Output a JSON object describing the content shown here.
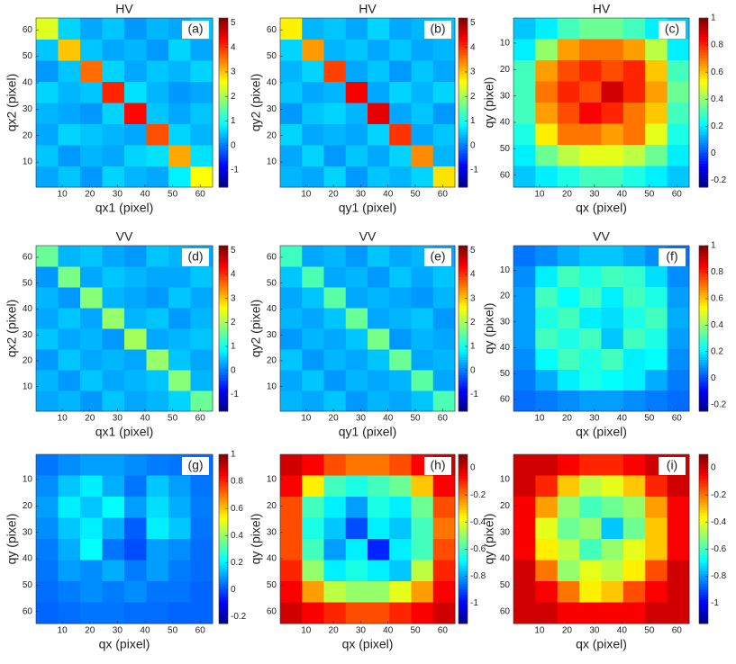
{
  "chart_data": [
    {
      "type": "heatmap",
      "title": "HV",
      "panel_label": "(a)",
      "xlabel": "qx1 (pixel)",
      "ylabel": "qx2 (pixel)",
      "xlim": [
        0.5,
        64.5
      ],
      "ylim": [
        0.5,
        64.5
      ],
      "xticks": [
        10,
        20,
        30,
        40,
        50,
        60
      ],
      "yticks": [
        10,
        20,
        30,
        40,
        50,
        60
      ],
      "y_reversed": false,
      "colormap": "jet",
      "clim": [
        -1.7,
        5.2
      ],
      "cticks": [
        -1,
        0,
        1,
        2,
        3,
        4,
        5
      ],
      "z": [
        [
          0.3,
          0.5,
          0.2,
          0.6,
          0.4,
          0.3,
          0.8,
          2.6
        ],
        [
          0.5,
          0.2,
          0.4,
          0.3,
          0.6,
          0.7,
          3.2,
          0.7
        ],
        [
          0.3,
          0.6,
          0.5,
          0.4,
          0.3,
          3.8,
          0.6,
          0.4
        ],
        [
          0.4,
          0.3,
          0.2,
          0.6,
          4.3,
          0.5,
          0.3,
          0.5
        ],
        [
          0.6,
          0.4,
          0.5,
          4.1,
          0.7,
          0.4,
          0.2,
          0.3
        ],
        [
          0.2,
          0.5,
          3.6,
          0.6,
          0.3,
          0.5,
          0.4,
          0.6
        ],
        [
          0.5,
          3.0,
          0.5,
          0.3,
          0.4,
          0.2,
          0.6,
          0.3
        ],
        [
          2.4,
          0.6,
          0.3,
          0.5,
          0.2,
          0.4,
          0.3,
          0.5
        ]
      ]
    },
    {
      "type": "heatmap",
      "title": "HV",
      "panel_label": "(b)",
      "xlabel": "qy1 (pixel)",
      "ylabel": "qy2 (pixel)",
      "xlim": [
        0.5,
        64.5
      ],
      "ylim": [
        0.5,
        64.5
      ],
      "xticks": [
        10,
        20,
        30,
        40,
        50,
        60
      ],
      "yticks": [
        10,
        20,
        30,
        40,
        50,
        60
      ],
      "y_reversed": false,
      "colormap": "jet",
      "clim": [
        -1.7,
        5.2
      ],
      "cticks": [
        -1,
        0,
        1,
        2,
        3,
        4,
        5
      ],
      "z": [
        [
          0.4,
          0.3,
          0.6,
          0.2,
          0.5,
          0.4,
          0.6,
          2.8
        ],
        [
          0.3,
          0.6,
          0.2,
          0.5,
          0.3,
          0.6,
          3.4,
          0.4
        ],
        [
          0.6,
          0.3,
          0.4,
          0.3,
          0.6,
          4.0,
          0.3,
          0.5
        ],
        [
          0.2,
          0.5,
          0.6,
          0.4,
          4.5,
          0.3,
          0.5,
          0.2
        ],
        [
          0.5,
          0.3,
          0.4,
          4.4,
          0.3,
          0.6,
          0.4,
          0.6
        ],
        [
          0.4,
          0.6,
          3.9,
          0.3,
          0.5,
          0.2,
          0.5,
          0.3
        ],
        [
          0.6,
          3.3,
          0.4,
          0.5,
          0.3,
          0.5,
          0.3,
          0.4
        ],
        [
          2.7,
          0.4,
          0.5,
          0.3,
          0.6,
          0.3,
          0.4,
          0.5
        ]
      ]
    },
    {
      "type": "heatmap",
      "title": "HV",
      "panel_label": "(c)",
      "xlabel": "qx (pixel)",
      "ylabel": "qy (pixel)",
      "xlim": [
        0.5,
        64.5
      ],
      "ylim": [
        0.5,
        64.5
      ],
      "xticks": [
        10,
        20,
        30,
        40,
        50,
        60
      ],
      "yticks": [
        10,
        20,
        30,
        40,
        50,
        60
      ],
      "y_reversed": true,
      "colormap": "jet",
      "clim": [
        -0.25,
        1
      ],
      "cticks": [
        -0.2,
        0,
        0.2,
        0.4,
        0.6,
        0.8,
        1
      ],
      "z": [
        [
          0.15,
          0.2,
          0.3,
          0.35,
          0.35,
          0.3,
          0.2,
          0.15
        ],
        [
          0.2,
          0.4,
          0.65,
          0.7,
          0.7,
          0.65,
          0.45,
          0.2
        ],
        [
          0.3,
          0.65,
          0.75,
          0.8,
          0.75,
          0.8,
          0.6,
          0.3
        ],
        [
          0.3,
          0.7,
          0.8,
          0.75,
          0.9,
          0.8,
          0.65,
          0.35
        ],
        [
          0.3,
          0.65,
          0.75,
          0.85,
          0.8,
          0.7,
          0.6,
          0.3
        ],
        [
          0.25,
          0.55,
          0.7,
          0.7,
          0.65,
          0.7,
          0.5,
          0.25
        ],
        [
          0.2,
          0.35,
          0.45,
          0.5,
          0.5,
          0.45,
          0.35,
          0.2
        ],
        [
          0.15,
          0.2,
          0.25,
          0.3,
          0.3,
          0.25,
          0.2,
          0.15
        ]
      ]
    },
    {
      "type": "heatmap",
      "title": "VV",
      "panel_label": "(d)",
      "xlabel": "qx1 (pixel)",
      "ylabel": "qx2 (pixel)",
      "xlim": [
        0.5,
        64.5
      ],
      "ylim": [
        0.5,
        64.5
      ],
      "xticks": [
        10,
        20,
        30,
        40,
        50,
        60
      ],
      "yticks": [
        10,
        20,
        30,
        40,
        50,
        60
      ],
      "y_reversed": false,
      "colormap": "jet",
      "clim": [
        -1.7,
        5.2
      ],
      "cticks": [
        -1,
        0,
        1,
        2,
        3,
        4,
        5
      ],
      "z": [
        [
          0.3,
          0.4,
          0.2,
          0.5,
          0.3,
          0.4,
          0.6,
          1.6
        ],
        [
          0.4,
          0.2,
          0.5,
          0.3,
          0.4,
          0.5,
          1.8,
          0.4
        ],
        [
          0.2,
          0.5,
          0.3,
          0.4,
          0.3,
          1.9,
          0.5,
          0.3
        ],
        [
          0.5,
          0.3,
          0.4,
          0.2,
          2.0,
          0.3,
          0.4,
          0.5
        ],
        [
          0.3,
          0.5,
          0.3,
          1.9,
          0.4,
          0.5,
          0.2,
          0.4
        ],
        [
          0.4,
          0.2,
          1.8,
          0.4,
          0.3,
          0.2,
          0.5,
          0.3
        ],
        [
          0.2,
          1.7,
          0.3,
          0.5,
          0.4,
          0.3,
          0.3,
          0.5
        ],
        [
          1.6,
          0.4,
          0.5,
          0.3,
          0.2,
          0.5,
          0.4,
          0.3
        ]
      ]
    },
    {
      "type": "heatmap",
      "title": "VV",
      "panel_label": "(e)",
      "xlabel": "qy1 (pixel)",
      "ylabel": "qy2 (pixel)",
      "xlim": [
        0.5,
        64.5
      ],
      "ylim": [
        0.5,
        64.5
      ],
      "xticks": [
        10,
        20,
        30,
        40,
        50,
        60
      ],
      "yticks": [
        10,
        20,
        30,
        40,
        50,
        60
      ],
      "y_reversed": false,
      "colormap": "jet",
      "clim": [
        -1.7,
        5.2
      ],
      "cticks": [
        -1,
        0,
        1,
        2,
        3,
        4,
        5
      ],
      "z": [
        [
          0.4,
          0.3,
          0.5,
          0.2,
          0.4,
          0.3,
          0.5,
          1.4
        ],
        [
          0.3,
          0.5,
          0.2,
          0.4,
          0.3,
          0.4,
          1.5,
          0.3
        ],
        [
          0.5,
          0.2,
          0.4,
          0.3,
          0.5,
          1.6,
          0.3,
          0.4
        ],
        [
          0.2,
          0.4,
          0.3,
          0.5,
          1.7,
          0.2,
          0.4,
          0.3
        ],
        [
          0.4,
          0.3,
          0.5,
          1.6,
          0.3,
          0.4,
          0.5,
          0.2
        ],
        [
          0.3,
          0.5,
          1.5,
          0.3,
          0.4,
          0.3,
          0.2,
          0.4
        ],
        [
          0.5,
          1.4,
          0.3,
          0.4,
          0.2,
          0.5,
          0.3,
          0.5
        ],
        [
          1.3,
          0.3,
          0.4,
          0.2,
          0.5,
          0.3,
          0.4,
          0.3
        ]
      ]
    },
    {
      "type": "heatmap",
      "title": "VV",
      "panel_label": "(f)",
      "xlabel": "qx (pixel)",
      "ylabel": "qy (pixel)",
      "xlim": [
        0.5,
        64.5
      ],
      "ylim": [
        0.5,
        64.5
      ],
      "xticks": [
        10,
        20,
        30,
        40,
        50,
        60
      ],
      "yticks": [
        10,
        20,
        30,
        40,
        50,
        60
      ],
      "y_reversed": true,
      "colormap": "jet",
      "clim": [
        -0.25,
        1
      ],
      "cticks": [
        -0.2,
        0,
        0.2,
        0.4,
        0.6,
        0.8,
        1
      ],
      "z": [
        [
          0.05,
          0.08,
          0.12,
          0.15,
          0.15,
          0.12,
          0.08,
          0.05
        ],
        [
          0.08,
          0.2,
          0.3,
          0.25,
          0.3,
          0.28,
          0.18,
          0.08
        ],
        [
          0.1,
          0.3,
          0.22,
          0.3,
          0.2,
          0.3,
          0.25,
          0.1
        ],
        [
          0.1,
          0.25,
          0.3,
          0.2,
          0.18,
          0.25,
          0.3,
          0.12
        ],
        [
          0.1,
          0.3,
          0.25,
          0.3,
          0.15,
          0.3,
          0.25,
          0.1
        ],
        [
          0.08,
          0.22,
          0.3,
          0.25,
          0.3,
          0.2,
          0.22,
          0.08
        ],
        [
          0.06,
          0.12,
          0.2,
          0.25,
          0.22,
          0.2,
          0.12,
          0.06
        ],
        [
          0.04,
          0.06,
          0.08,
          0.1,
          0.1,
          0.08,
          0.06,
          0.04
        ]
      ]
    },
    {
      "type": "heatmap",
      "panel_label": "(g)",
      "xlabel": "qx (pixel)",
      "ylabel": "qy (pixel)",
      "xlim": [
        0.5,
        64.5
      ],
      "ylim": [
        0.5,
        64.5
      ],
      "xticks": [
        10,
        20,
        30,
        40,
        50,
        60
      ],
      "yticks": [
        10,
        20,
        30,
        40,
        50,
        60
      ],
      "y_reversed": true,
      "colormap": "jet",
      "clim": [
        -0.25,
        1
      ],
      "cticks": [
        -0.2,
        0,
        0.2,
        0.4,
        0.6,
        0.8,
        1
      ],
      "z": [
        [
          0.05,
          0.08,
          0.1,
          0.1,
          0.08,
          0.06,
          0.05,
          0.04
        ],
        [
          0.08,
          0.15,
          0.2,
          0.12,
          0.05,
          0.15,
          0.1,
          0.05
        ],
        [
          0.1,
          0.2,
          0.15,
          0.22,
          0.1,
          0.18,
          0.12,
          0.06
        ],
        [
          0.08,
          0.15,
          0.2,
          0.12,
          0.02,
          0.2,
          0.15,
          0.05
        ],
        [
          0.06,
          0.12,
          0.22,
          0.05,
          0.0,
          0.1,
          0.08,
          0.04
        ],
        [
          0.05,
          0.1,
          0.08,
          0.12,
          0.06,
          0.1,
          0.06,
          0.04
        ],
        [
          0.04,
          0.06,
          0.08,
          0.06,
          0.08,
          0.05,
          0.05,
          0.03
        ],
        [
          0.03,
          0.04,
          0.05,
          0.05,
          0.04,
          0.04,
          0.03,
          0.03
        ]
      ]
    },
    {
      "type": "heatmap",
      "panel_label": "(h)",
      "xlabel": "qx (pixel)",
      "ylabel": "qy (pixel)",
      "xlim": [
        0.5,
        64.5
      ],
      "ylim": [
        0.5,
        64.5
      ],
      "xticks": [
        10,
        20,
        30,
        40,
        50,
        60
      ],
      "yticks": [
        10,
        20,
        30,
        40,
        50,
        60
      ],
      "y_reversed": true,
      "colormap": "jet",
      "clim": [
        -1.15,
        0.1
      ],
      "cticks": [
        -1,
        -0.8,
        -0.6,
        -0.4,
        -0.2,
        0
      ],
      "z": [
        [
          0.0,
          -0.05,
          -0.15,
          -0.2,
          -0.2,
          -0.15,
          -0.05,
          0.0
        ],
        [
          -0.05,
          -0.35,
          -0.6,
          -0.65,
          -0.6,
          -0.55,
          -0.3,
          -0.05
        ],
        [
          -0.15,
          -0.6,
          -0.7,
          -0.8,
          -0.65,
          -0.7,
          -0.55,
          -0.15
        ],
        [
          -0.15,
          -0.65,
          -0.75,
          -0.9,
          -0.7,
          -0.75,
          -0.6,
          -0.2
        ],
        [
          -0.15,
          -0.6,
          -0.8,
          -0.7,
          -0.95,
          -0.7,
          -0.6,
          -0.15
        ],
        [
          -0.1,
          -0.5,
          -0.7,
          -0.65,
          -0.7,
          -0.75,
          -0.45,
          -0.1
        ],
        [
          -0.05,
          -0.25,
          -0.45,
          -0.5,
          -0.5,
          -0.4,
          -0.25,
          -0.05
        ],
        [
          0.0,
          -0.05,
          -0.1,
          -0.15,
          -0.15,
          -0.1,
          -0.05,
          0.0
        ]
      ]
    },
    {
      "type": "heatmap",
      "panel_label": "(i)",
      "xlabel": "qx (pixel)",
      "ylabel": "qy (pixel)",
      "xlim": [
        0.5,
        64.5
      ],
      "ylim": [
        0.5,
        64.5
      ],
      "xticks": [
        10,
        20,
        30,
        40,
        50,
        60
      ],
      "yticks": [
        10,
        20,
        30,
        40,
        50,
        60
      ],
      "y_reversed": true,
      "colormap": "jet",
      "clim": [
        -1.15,
        0.1
      ],
      "cticks": [
        -1,
        -0.8,
        -0.6,
        -0.4,
        -0.2,
        0
      ],
      "z": [
        [
          0.0,
          0.0,
          -0.05,
          -0.1,
          -0.1,
          -0.05,
          0.0,
          0.0
        ],
        [
          0.0,
          -0.1,
          -0.3,
          -0.45,
          -0.4,
          -0.3,
          -0.1,
          0.0
        ],
        [
          -0.05,
          -0.25,
          -0.5,
          -0.6,
          -0.55,
          -0.5,
          -0.25,
          -0.05
        ],
        [
          -0.05,
          -0.4,
          -0.55,
          -0.5,
          -0.75,
          -0.55,
          -0.3,
          -0.05
        ],
        [
          -0.05,
          -0.35,
          -0.45,
          -0.6,
          -0.5,
          -0.4,
          -0.3,
          -0.05
        ],
        [
          0.0,
          -0.2,
          -0.5,
          -0.4,
          -0.45,
          -0.35,
          -0.15,
          0.0
        ],
        [
          0.0,
          -0.05,
          -0.2,
          -0.35,
          -0.3,
          -0.15,
          -0.05,
          0.0
        ],
        [
          0.0,
          0.0,
          -0.05,
          -0.05,
          -0.05,
          -0.05,
          0.0,
          0.0
        ]
      ]
    }
  ]
}
